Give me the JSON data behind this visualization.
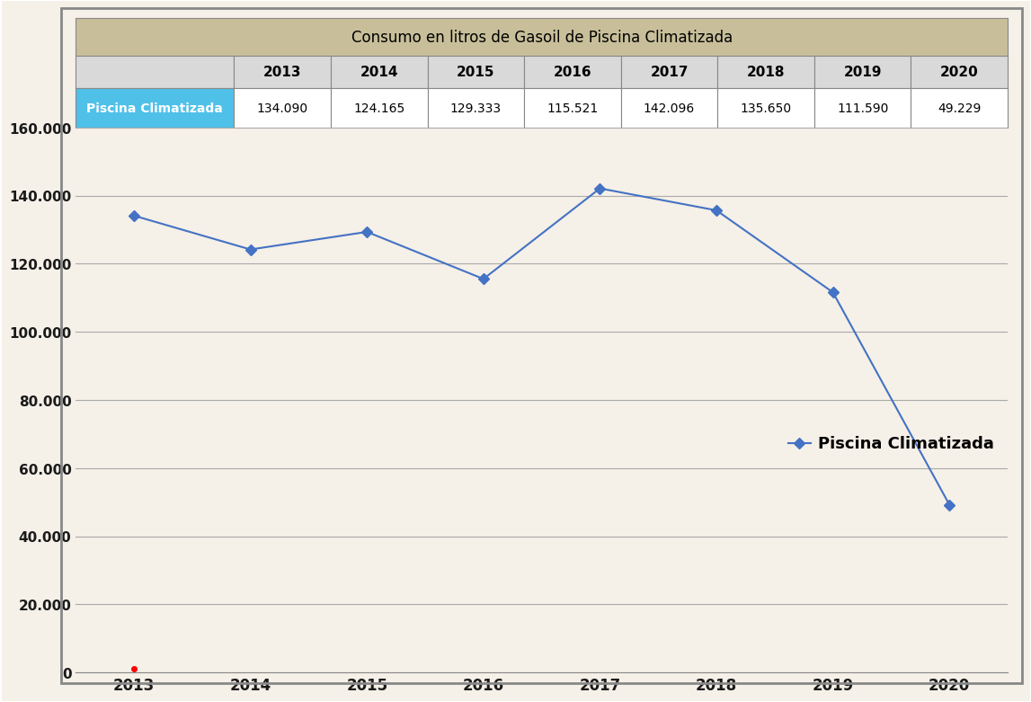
{
  "title": "Consumo en litros de Gasoil de Piscina Climatizada",
  "years": [
    2013,
    2014,
    2015,
    2016,
    2017,
    2018,
    2019,
    2020
  ],
  "values": [
    134090,
    124165,
    129333,
    115521,
    142096,
    135650,
    111590,
    49229
  ],
  "label_values": [
    "134.090",
    "124.165",
    "129.333",
    "115.521",
    "142.096",
    "135.650",
    "111.590",
    "49.229"
  ],
  "series_name": "Piscina Climatizada",
  "line_color": "#4472C4",
  "marker": "D",
  "marker_color": "#4472C4",
  "bg_color": "#F5F0E8",
  "plot_bg_color": "#F5F0E8",
  "table_header_bg": "#C8BF9A",
  "table_years_bg": "#D9D9D9",
  "table_label_bg": "#4FC1E9",
  "table_text_color": "#1a1a1a",
  "grid_color": "#AAAAAA",
  "outer_border_color": "#888888",
  "ylim": [
    0,
    160000
  ],
  "yticks": [
    0,
    20000,
    40000,
    60000,
    80000,
    100000,
    120000,
    140000,
    160000
  ]
}
